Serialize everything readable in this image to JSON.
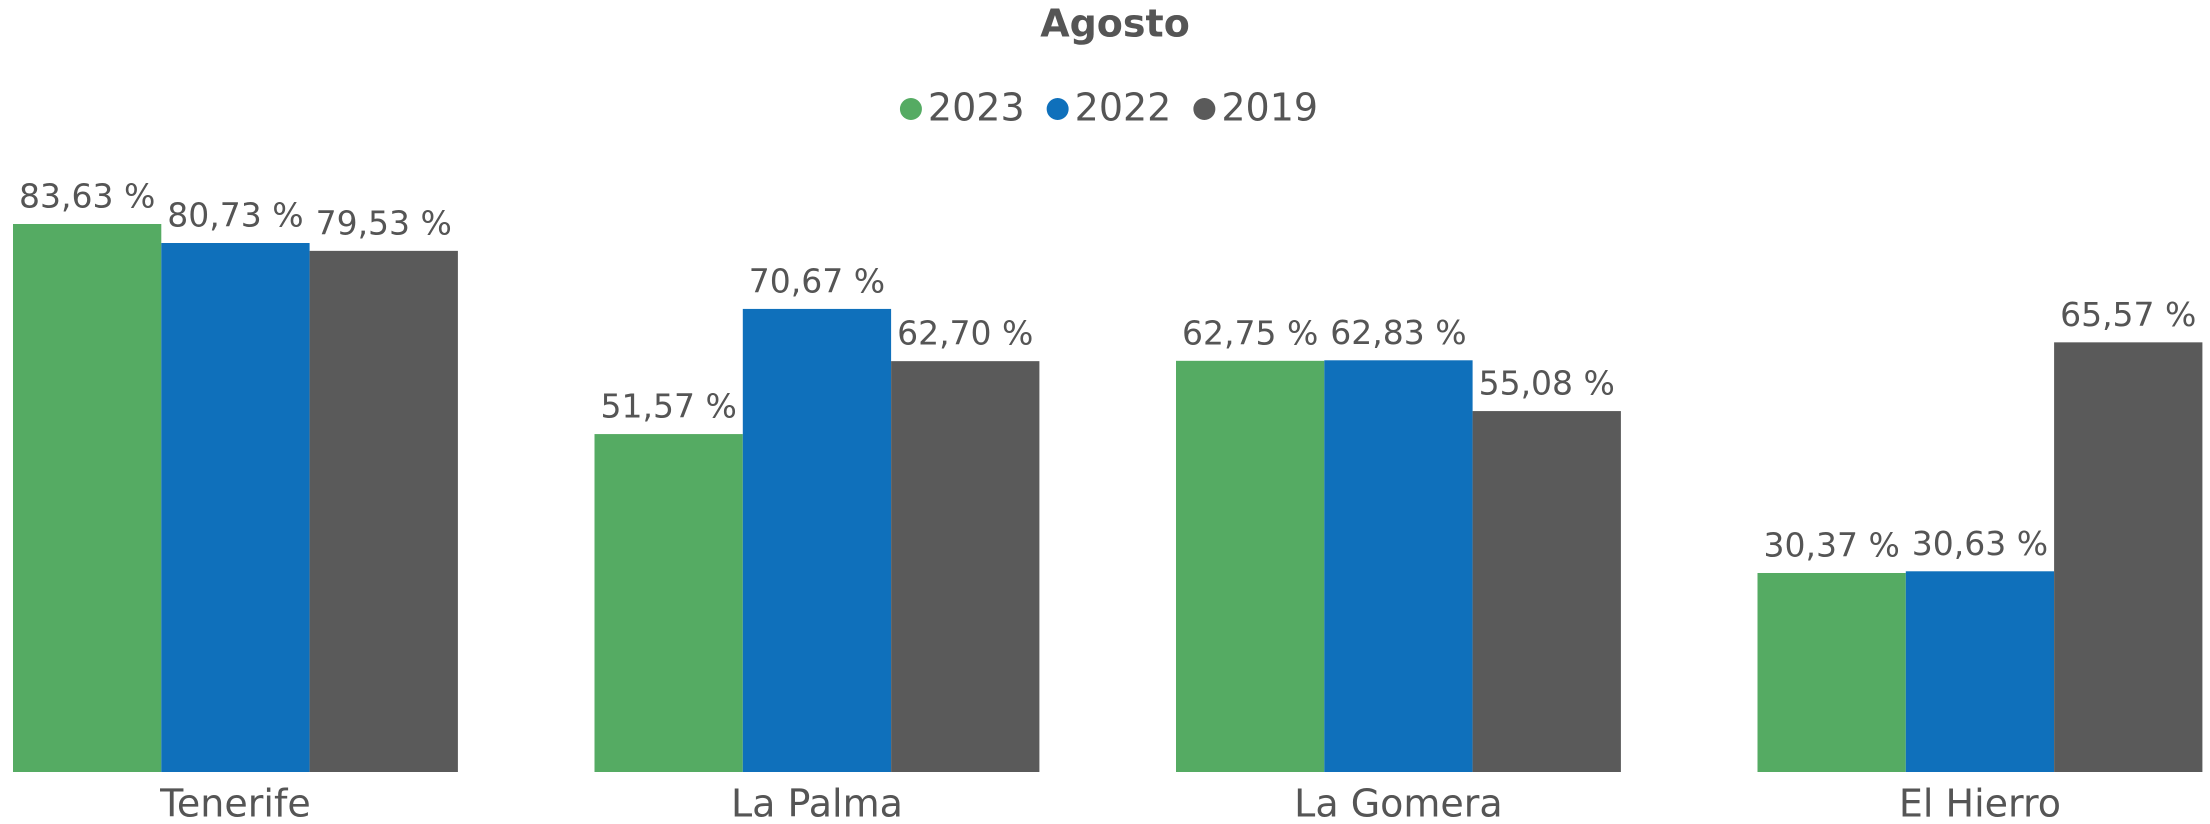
{
  "chart_data": {
    "type": "bar",
    "title": "Agosto",
    "categories": [
      "Tenerife",
      "La Palma",
      "La Gomera",
      "El Hierro"
    ],
    "series": [
      {
        "name": "2023",
        "color": "#55ab63",
        "values": [
          83.63,
          51.57,
          62.75,
          30.37
        ],
        "value_labels": [
          "83,63 %",
          "51,57 %",
          "62,75 %",
          "30,37 %"
        ]
      },
      {
        "name": "2022",
        "color": "#0f70bb",
        "values": [
          80.73,
          70.67,
          62.83,
          30.63
        ],
        "value_labels": [
          "80,73 %",
          "70,67 %",
          "62,83 %",
          "30,63 %"
        ]
      },
      {
        "name": "2019",
        "color": "#5a5a5a",
        "values": [
          79.53,
          62.7,
          55.08,
          65.57
        ],
        "value_labels": [
          "79,53 %",
          "62,70 %",
          "55,08 %",
          "65,57 %"
        ]
      }
    ],
    "legend": "top"
  }
}
